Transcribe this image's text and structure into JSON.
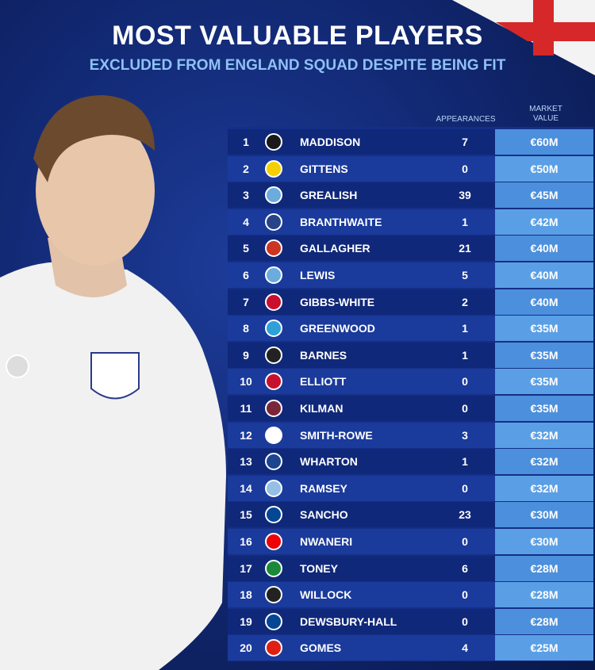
{
  "header": {
    "title": "MOST VALUABLE PLAYERS",
    "subtitle": "EXCLUDED FROM ENGLAND SQUAD DESPITE BEING FIT"
  },
  "table": {
    "columns": [
      "APPEARANCES",
      "MARKET VALUE"
    ],
    "rows": [
      [
        1,
        "MADDISON",
        7,
        "€60M"
      ],
      [
        2,
        "GITTENS",
        0,
        "€50M"
      ],
      [
        3,
        "GREALISH",
        39,
        "€45M"
      ],
      [
        4,
        "BRANTHWAITE",
        1,
        "€42M"
      ],
      [
        5,
        "GALLAGHER",
        21,
        "€40M"
      ],
      [
        6,
        "LEWIS",
        5,
        "€40M"
      ],
      [
        7,
        "GIBBS-WHITE",
        2,
        "€40M"
      ],
      [
        8,
        "GREENWOOD",
        1,
        "€35M"
      ],
      [
        9,
        "BARNES",
        1,
        "€35M"
      ],
      [
        10,
        "ELLIOTT",
        0,
        "€35M"
      ],
      [
        11,
        "KILMAN",
        0,
        "€35M"
      ],
      [
        12,
        "SMITH-ROWE",
        3,
        "€32M"
      ],
      [
        13,
        "WHARTON",
        1,
        "€32M"
      ],
      [
        14,
        "RAMSEY",
        0,
        "€32M"
      ],
      [
        15,
        "SANCHO",
        23,
        "€30M"
      ],
      [
        16,
        "NWANERI",
        0,
        "€30M"
      ],
      [
        17,
        "TONEY",
        6,
        "€28M"
      ],
      [
        18,
        "WILLOCK",
        0,
        "€28M"
      ],
      [
        19,
        "DEWSBURY-HALL",
        0,
        "€28M"
      ],
      [
        20,
        "GOMES",
        4,
        "€25M"
      ]
    ]
  }
}
